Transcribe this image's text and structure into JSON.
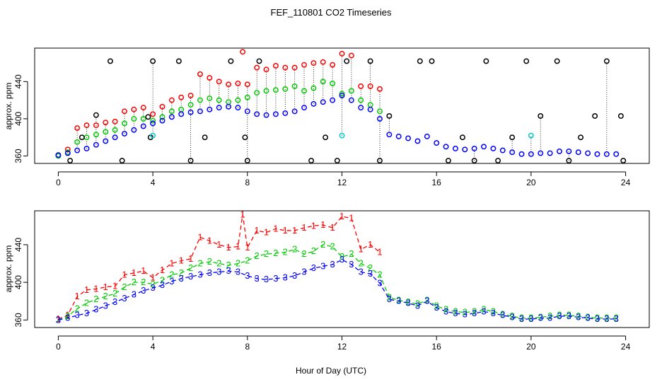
{
  "title": "FEF_110801  CO2 Timeseries",
  "xlabel": "Hour of Day (UTC)",
  "colors": {
    "s1": "#ff0000",
    "s2": "#00cc00",
    "s3": "#0000ff",
    "black": "#000000",
    "cyan": "#00cccc"
  },
  "chart_data": [
    {
      "type": "scatter",
      "panel": "top",
      "ylabel": "approx. ppm",
      "xlim": [
        -1,
        25
      ],
      "ylim": [
        352,
        476
      ],
      "xticks": [
        "0",
        "4",
        "8",
        "12",
        "16",
        "20",
        "24"
      ],
      "xtick_values": [
        0,
        4,
        8,
        12,
        16,
        20,
        24
      ],
      "yticks": [
        "360",
        "400",
        "440"
      ],
      "ytick_values": [
        360,
        400,
        440
      ],
      "series": [
        {
          "name": "red",
          "color": "#ff0000",
          "symbol": "circle",
          "x": [
            0.0,
            0.4,
            0.8,
            1.2,
            1.6,
            2.0,
            2.4,
            2.8,
            3.2,
            3.6,
            4.0,
            4.4,
            4.8,
            5.2,
            5.6,
            6.0,
            6.4,
            6.8,
            7.2,
            7.6,
            7.8,
            8.0,
            8.4,
            8.8,
            9.2,
            9.6,
            10.0,
            10.4,
            10.8,
            11.2,
            11.6,
            12.0,
            12.4,
            12.8,
            13.2,
            13.6
          ],
          "y": [
            361,
            367,
            390,
            393,
            393,
            396,
            397,
            408,
            410,
            412,
            405,
            413,
            420,
            423,
            425,
            448,
            444,
            440,
            437,
            438,
            472,
            437,
            455,
            453,
            457,
            455,
            455,
            458,
            460,
            461,
            458,
            470,
            468,
            435,
            435,
            432
          ]
        },
        {
          "name": "green",
          "color": "#00cc00",
          "symbol": "circle",
          "x": [
            0.0,
            0.4,
            0.8,
            1.2,
            1.6,
            2.0,
            2.4,
            2.8,
            3.2,
            3.6,
            4.0,
            4.4,
            4.8,
            5.2,
            5.6,
            6.0,
            6.4,
            6.8,
            7.2,
            7.6,
            8.0,
            8.4,
            8.8,
            9.2,
            9.6,
            10.0,
            10.4,
            10.8,
            11.2,
            11.6,
            12.0,
            12.4,
            12.8,
            13.2,
            13.6
          ],
          "y": [
            360,
            364,
            375,
            380,
            383,
            386,
            388,
            395,
            400,
            400,
            398,
            402,
            408,
            410,
            415,
            420,
            422,
            420,
            418,
            420,
            423,
            428,
            430,
            431,
            432,
            435,
            430,
            433,
            440,
            438,
            427,
            430,
            420,
            415,
            408
          ]
        },
        {
          "name": "blue",
          "color": "#0000ff",
          "symbol": "circle",
          "x": [
            0.0,
            0.4,
            0.8,
            1.2,
            1.6,
            2.0,
            2.4,
            2.8,
            3.2,
            3.6,
            4.0,
            4.4,
            4.8,
            5.2,
            5.6,
            6.0,
            6.4,
            6.8,
            7.2,
            7.6,
            8.0,
            8.4,
            8.8,
            9.2,
            9.6,
            10.0,
            10.4,
            10.8,
            11.2,
            11.6,
            12.0,
            12.4,
            12.8,
            13.2,
            13.6,
            14.0,
            14.4,
            14.8,
            15.2,
            15.6,
            16.0,
            16.4,
            16.8,
            17.2,
            17.6,
            18.0,
            18.4,
            18.8,
            19.2,
            19.6,
            20.0,
            20.4,
            20.8,
            21.2,
            21.6,
            22.0,
            22.4,
            22.8,
            23.2,
            23.6
          ],
          "y": [
            361,
            363,
            366,
            368,
            372,
            376,
            380,
            384,
            388,
            392,
            395,
            398,
            402,
            405,
            407,
            408,
            410,
            412,
            413,
            412,
            408,
            405,
            404,
            405,
            406,
            408,
            412,
            416,
            418,
            420,
            425,
            420,
            412,
            410,
            400,
            383,
            381,
            379,
            376,
            381,
            374,
            370,
            368,
            367,
            368,
            370,
            368,
            366,
            364,
            362,
            362,
            363,
            363,
            365,
            365,
            364,
            363,
            362,
            362,
            362
          ]
        },
        {
          "name": "black",
          "color": "#000000",
          "symbol": "circle",
          "x": [
            0.5,
            1.0,
            1.6,
            2.2,
            2.7,
            3.8,
            3.9,
            4.0,
            5.1,
            5.6,
            6.2,
            7.3,
            7.9,
            8.0,
            8.5,
            10.7,
            11.3,
            11.8,
            12.2,
            13.2,
            13.6,
            14.0,
            15.3,
            15.8,
            16.5,
            17.1,
            17.6,
            18.1,
            18.6,
            19.2,
            19.8,
            20.4,
            21.1,
            21.6,
            22.1,
            22.7,
            23.2,
            23.8,
            23.9
          ],
          "y": [
            355,
            380,
            404,
            462,
            355,
            402,
            380,
            462,
            462,
            355,
            380,
            462,
            380,
            355,
            462,
            355,
            380,
            355,
            462,
            462,
            355,
            403,
            462,
            462,
            355,
            380,
            355,
            462,
            355,
            380,
            462,
            403,
            462,
            355,
            380,
            403,
            462,
            403,
            355
          ]
        },
        {
          "name": "cyan",
          "color": "#00cccc",
          "symbol": "circle",
          "x": [
            4.0,
            12.0,
            20.0
          ],
          "y": [
            382,
            382,
            382
          ]
        }
      ]
    },
    {
      "type": "line",
      "panel": "bottom",
      "ylabel": "approx. ppm",
      "xlim": [
        -1,
        25
      ],
      "ylim": [
        352,
        476
      ],
      "xticks": [
        "0",
        "4",
        "8",
        "12",
        "16",
        "20",
        "24"
      ],
      "xtick_values": [
        0,
        4,
        8,
        12,
        16,
        20,
        24
      ],
      "yticks": [
        "360",
        "400",
        "440"
      ],
      "ytick_values": [
        360,
        400,
        440
      ],
      "series": [
        {
          "name": "1",
          "label": "1",
          "color": "#ff0000",
          "x": [
            0.0,
            0.4,
            0.8,
            1.2,
            1.6,
            2.0,
            2.4,
            2.8,
            3.2,
            3.6,
            4.0,
            4.4,
            4.8,
            5.2,
            5.6,
            6.0,
            6.4,
            6.8,
            7.2,
            7.6,
            7.8,
            8.0,
            8.4,
            8.8,
            9.2,
            9.6,
            10.0,
            10.4,
            10.8,
            11.2,
            11.6,
            12.0,
            12.4,
            12.8,
            13.2,
            13.6
          ],
          "y": [
            361,
            365,
            385,
            392,
            393,
            395,
            396,
            408,
            410,
            412,
            405,
            413,
            420,
            423,
            425,
            448,
            444,
            440,
            437,
            438,
            472,
            437,
            455,
            453,
            457,
            455,
            455,
            458,
            460,
            461,
            458,
            470,
            468,
            435,
            440,
            432
          ]
        },
        {
          "name": "2",
          "label": "2",
          "color": "#00cc00",
          "x": [
            0.0,
            0.4,
            0.8,
            1.2,
            1.6,
            2.0,
            2.4,
            2.8,
            3.2,
            3.6,
            4.0,
            4.4,
            4.8,
            5.2,
            5.6,
            6.0,
            6.4,
            6.8,
            7.2,
            7.6,
            8.0,
            8.4,
            8.8,
            9.2,
            9.6,
            10.0,
            10.4,
            10.8,
            11.2,
            11.6,
            12.0,
            12.4,
            12.8,
            13.2,
            13.6,
            14.0,
            14.4,
            14.8,
            15.2,
            15.6,
            16.0,
            16.4,
            16.8,
            17.2,
            17.6,
            18.0,
            18.4,
            18.8,
            19.2,
            19.6,
            20.0,
            20.4,
            20.8,
            21.2,
            21.6,
            22.0,
            22.4,
            22.8,
            23.2,
            23.6
          ],
          "y": [
            360,
            364,
            372,
            378,
            382,
            385,
            388,
            395,
            400,
            400,
            398,
            402,
            408,
            410,
            415,
            420,
            422,
            420,
            418,
            420,
            423,
            428,
            430,
            431,
            432,
            435,
            430,
            433,
            440,
            438,
            427,
            430,
            420,
            415,
            408,
            384,
            381,
            379,
            377,
            381,
            375,
            371,
            369,
            368,
            369,
            371,
            369,
            366,
            364,
            362,
            362,
            363,
            364,
            365,
            365,
            364,
            363,
            362,
            362,
            362
          ]
        },
        {
          "name": "3",
          "label": "3",
          "color": "#0000ff",
          "x": [
            0.0,
            0.4,
            0.8,
            1.2,
            1.6,
            2.0,
            2.4,
            2.8,
            3.2,
            3.6,
            4.0,
            4.4,
            4.8,
            5.2,
            5.6,
            6.0,
            6.4,
            6.8,
            7.2,
            7.6,
            8.0,
            8.4,
            8.8,
            9.2,
            9.6,
            10.0,
            10.4,
            10.8,
            11.2,
            11.6,
            12.0,
            12.4,
            12.8,
            13.2,
            13.6,
            14.0,
            14.4,
            14.8,
            15.2,
            15.6,
            16.0,
            16.4,
            16.8,
            17.2,
            17.6,
            18.0,
            18.4,
            18.8,
            19.2,
            19.6,
            20.0,
            20.4,
            20.8,
            21.2,
            21.6,
            22.0,
            22.4,
            22.8,
            23.2,
            23.6
          ],
          "y": [
            360,
            362,
            365,
            367,
            371,
            375,
            379,
            383,
            387,
            391,
            394,
            397,
            401,
            404,
            406,
            408,
            410,
            411,
            412,
            411,
            407,
            404,
            403,
            404,
            405,
            407,
            411,
            415,
            417,
            419,
            424,
            419,
            411,
            409,
            399,
            382,
            380,
            378,
            375,
            380,
            373,
            369,
            367,
            366,
            367,
            369,
            367,
            365,
            363,
            361,
            361,
            362,
            362,
            364,
            364,
            363,
            362,
            361,
            361,
            361
          ]
        }
      ]
    }
  ]
}
